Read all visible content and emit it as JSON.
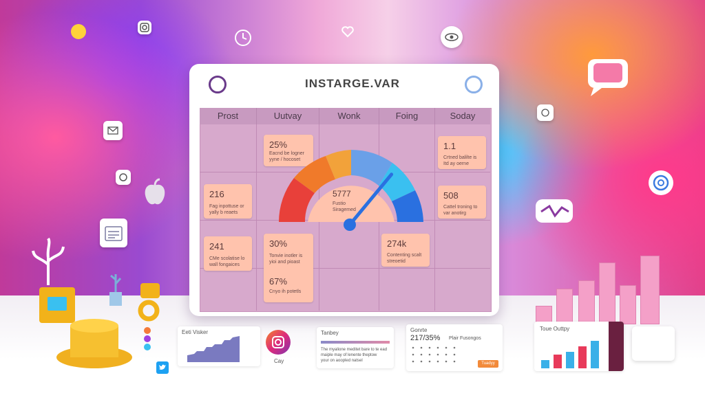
{
  "window": {
    "title": "INSTARGE.VAR"
  },
  "columns": [
    "Prost",
    "Uutvay",
    "Wonk",
    "Foing",
    "Soday"
  ],
  "cards": [
    {
      "value": "25%",
      "lines": [
        "Eacnd be logner",
        "yyne / hocoset"
      ]
    },
    {
      "value": "216",
      "lines": [
        "Fag inpottuse or",
        "yally b reaets"
      ]
    },
    {
      "value": "241",
      "lines": [
        "CMe scolatise lo",
        "wall fongaices"
      ]
    },
    {
      "value": "30%",
      "lines": [
        "Tonvie inotler is",
        "yioi and pioast"
      ]
    },
    {
      "value": "67%",
      "lines": [
        "Cnyo ih potetls"
      ]
    },
    {
      "value": "274k",
      "lines": [
        "Contenting scalt",
        "streoetid"
      ]
    },
    {
      "value": "1.1",
      "lines": [
        "Crtned balilte is",
        "Itd ay oerne"
      ]
    },
    {
      "value": "508",
      "lines": [
        "Cattel troning to",
        "var anotirg"
      ]
    }
  ],
  "gauge": {
    "value": "5777",
    "label_lines": [
      "Fustio",
      "Siragemed"
    ],
    "level": 0.72
  },
  "bottom": {
    "sparkline_title": "Eeti Visker",
    "insta_label": "Cay",
    "text_panel": {
      "title": "Tanbey",
      "lines": [
        "The myalione meditet bare to te ead",
        "maiple may of lenente theptow",
        "your on aoopled natsel"
      ]
    },
    "calendar_panel": {
      "title": "Gonrte",
      "stat": "217/35%",
      "stat_label": "Plair Fusongos",
      "button": "Tuadyy"
    },
    "bar_panel": {
      "title": "Toue Outtpy"
    }
  },
  "colors": {
    "accent": "#e0408a",
    "gauge": [
      "#e8403a",
      "#f07a2a",
      "#f2a23a",
      "#6aa0e8",
      "#3ac0f0",
      "#2a70e0"
    ]
  },
  "icons": [
    "instagram-icon",
    "clock-icon",
    "heart-icon",
    "eye-icon",
    "mail-icon",
    "apple-icon",
    "calendar-icon",
    "chat-bubble-icon",
    "target-icon",
    "twitter-icon"
  ]
}
